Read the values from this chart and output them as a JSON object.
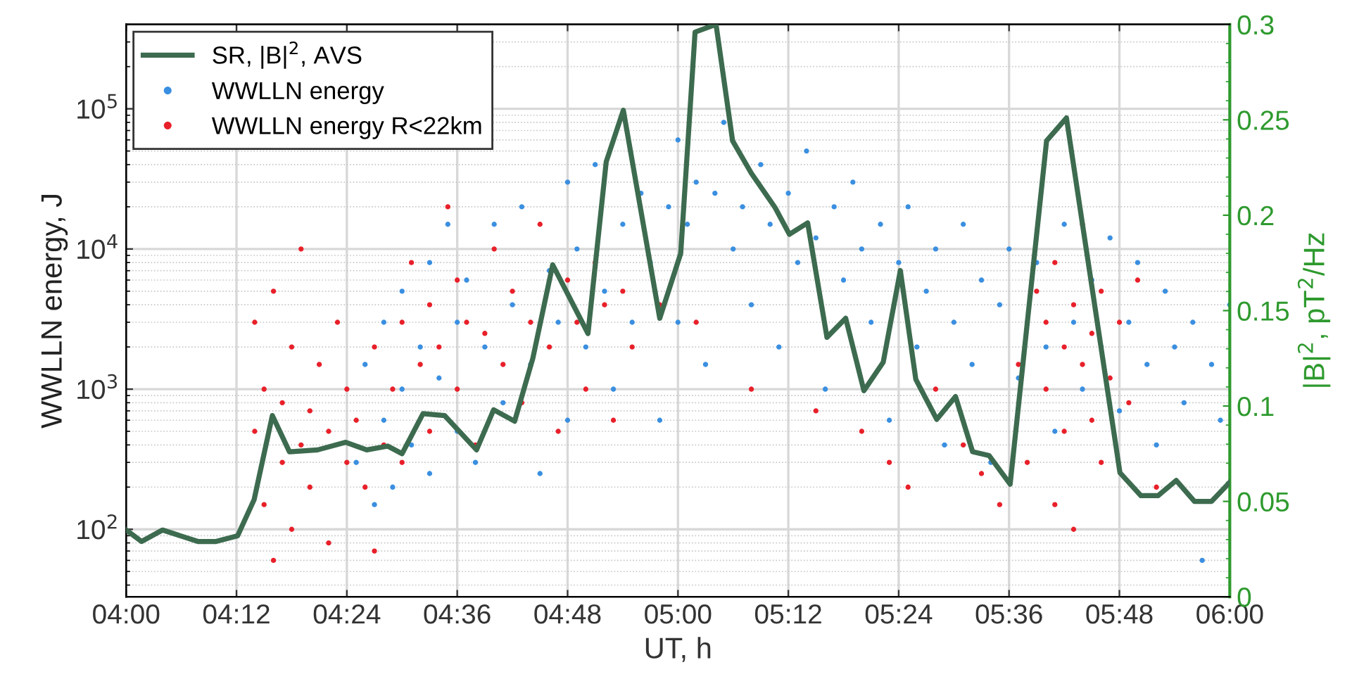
{
  "chart_data": {
    "type": "scatter",
    "xlabel": "UT, h",
    "ylabel": "WWLLN energy, J",
    "y2label": "|B|$^{2}$, pT$^{2}$/Hz",
    "xlim": [
      4.0,
      6.0
    ],
    "xticks": [
      {
        "value": 4.0,
        "label": "04:00"
      },
      {
        "value": 4.2,
        "label": "04:12"
      },
      {
        "value": 4.4,
        "label": "04:24"
      },
      {
        "value": 4.6,
        "label": "04:36"
      },
      {
        "value": 4.8,
        "label": "04:48"
      },
      {
        "value": 5.0,
        "label": "05:00"
      },
      {
        "value": 5.2,
        "label": "05:12"
      },
      {
        "value": 5.4,
        "label": "05:24"
      },
      {
        "value": 5.6,
        "label": "05:36"
      },
      {
        "value": 5.8,
        "label": "05:48"
      },
      {
        "value": 6.0,
        "label": "06:00"
      }
    ],
    "log": "y",
    "ylim": [
      33,
      400000
    ],
    "yticks": [
      {
        "value": 100,
        "label": "10$^{2}$"
      },
      {
        "value": 1000,
        "label": "10$^{3}$"
      },
      {
        "value": 10000,
        "label": "10$^{4}$"
      },
      {
        "value": 100000,
        "label": "10$^{5}$"
      }
    ],
    "y2lim": [
      0,
      0.3
    ],
    "y2ticks": [
      0,
      0.05,
      0.1,
      0.15,
      0.2,
      0.25,
      0.3
    ],
    "grid": true,
    "legend": "top left",
    "series": [
      {
        "name": "SR, |B|$^{2}$, AVS",
        "type": "line",
        "axis": "y2",
        "color": "#3d6b4f",
        "marker": "none",
        "line_style": "solid",
        "x": [
          4.0,
          4.028,
          4.066,
          4.13,
          4.163,
          4.202,
          4.232,
          4.265,
          4.296,
          4.347,
          4.398,
          4.436,
          4.474,
          4.5,
          4.538,
          4.577,
          4.635,
          4.666,
          4.704,
          4.737,
          4.773,
          4.837,
          4.87,
          4.901,
          4.967,
          5.005,
          5.031,
          5.069,
          5.099,
          5.133,
          5.176,
          5.202,
          5.235,
          5.27,
          5.304,
          5.337,
          5.372,
          5.403,
          5.431,
          5.469,
          5.503,
          5.534,
          5.564,
          5.602,
          5.668,
          5.704,
          5.801,
          5.839,
          5.87,
          5.903,
          5.936,
          5.967,
          6.0
        ],
        "values": [
          0.035,
          0.029,
          0.035,
          0.029,
          0.029,
          0.032,
          0.051,
          0.095,
          0.076,
          0.077,
          0.081,
          0.077,
          0.079,
          0.075,
          0.096,
          0.095,
          0.077,
          0.098,
          0.092,
          0.125,
          0.174,
          0.138,
          0.228,
          0.255,
          0.146,
          0.18,
          0.296,
          0.3,
          0.239,
          0.222,
          0.204,
          0.19,
          0.196,
          0.136,
          0.146,
          0.108,
          0.123,
          0.171,
          0.114,
          0.093,
          0.105,
          0.076,
          0.074,
          0.059,
          0.239,
          0.251,
          0.065,
          0.053,
          0.053,
          0.061,
          0.05,
          0.05,
          0.06
        ]
      },
      {
        "name": "WWLLN energy",
        "axis": "y",
        "color": "#3a8fe0",
        "marker": "circle",
        "x": [
          4.417,
          4.433,
          4.45,
          4.467,
          4.467,
          4.483,
          4.5,
          4.5,
          4.517,
          4.533,
          4.55,
          4.55,
          4.567,
          4.583,
          4.6,
          4.6,
          4.617,
          4.633,
          4.65,
          4.667,
          4.683,
          4.7,
          4.717,
          4.733,
          4.75,
          4.767,
          4.783,
          4.8,
          4.8,
          4.817,
          4.833,
          4.85,
          4.867,
          4.883,
          4.9,
          4.917,
          4.933,
          4.95,
          4.967,
          4.983,
          5.0,
          5.0,
          5.017,
          5.033,
          5.05,
          5.067,
          5.083,
          5.1,
          5.117,
          5.133,
          5.15,
          5.167,
          5.183,
          5.2,
          5.217,
          5.233,
          5.25,
          5.267,
          5.283,
          5.3,
          5.317,
          5.333,
          5.35,
          5.367,
          5.383,
          5.4,
          5.417,
          5.433,
          5.45,
          5.467,
          5.483,
          5.5,
          5.517,
          5.533,
          5.55,
          5.567,
          5.583,
          5.6,
          5.617,
          5.633,
          5.65,
          5.667,
          5.683,
          5.7,
          5.717,
          5.733,
          5.75,
          5.767,
          5.783,
          5.8,
          5.817,
          5.833,
          5.85,
          5.867,
          5.883,
          5.9,
          5.917,
          5.933,
          5.95,
          5.967,
          5.983,
          6.0
        ],
        "values": [
          300,
          1500,
          150,
          3000,
          600,
          200,
          1000,
          5000,
          400,
          2000,
          8000,
          250,
          1200,
          15000,
          3000,
          500,
          6000,
          300,
          2000,
          15000,
          800,
          4000,
          20000,
          1500,
          250,
          7000,
          3000,
          30000,
          600,
          10000,
          2000,
          40000,
          5000,
          1000,
          15000,
          3000,
          25000,
          8000,
          600,
          20000,
          60000,
          3000,
          15000,
          30000,
          1500,
          25000,
          80000,
          10000,
          20000,
          4000,
          40000,
          15000,
          2000,
          25000,
          8000,
          50000,
          12000,
          1000,
          20000,
          6000,
          30000,
          10000,
          3000,
          15000,
          600,
          8000,
          20000,
          2000,
          5000,
          10000,
          400,
          3000,
          15000,
          1500,
          6000,
          300,
          4000,
          10000,
          1200,
          3000,
          8000,
          2000,
          500,
          15000,
          3000,
          1000,
          6000,
          2000,
          12000,
          700,
          3000,
          8000,
          1500,
          400,
          5000,
          2000,
          800,
          3000,
          60,
          1500,
          600,
          4000
        ]
      },
      {
        "name": "WWLLN energy R<22km",
        "axis": "y",
        "color": "#e8202a",
        "marker": "circle",
        "x": [
          4.233,
          4.233,
          4.25,
          4.25,
          4.267,
          4.267,
          4.283,
          4.283,
          4.3,
          4.3,
          4.317,
          4.317,
          4.333,
          4.333,
          4.35,
          4.367,
          4.367,
          4.383,
          4.4,
          4.4,
          4.417,
          4.433,
          4.45,
          4.45,
          4.467,
          4.483,
          4.5,
          4.5,
          4.517,
          4.533,
          4.55,
          4.55,
          4.567,
          4.583,
          4.6,
          4.6,
          4.617,
          4.633,
          4.65,
          4.667,
          4.683,
          4.7,
          4.717,
          4.733,
          4.75,
          4.767,
          4.783,
          4.8,
          4.817,
          4.833,
          4.85,
          4.867,
          4.883,
          4.9,
          4.917,
          4.967,
          5.033,
          5.133,
          5.25,
          5.333,
          5.383,
          5.417,
          5.467,
          5.517,
          5.55,
          5.583,
          5.617,
          5.633,
          5.65,
          5.667,
          5.667,
          5.683,
          5.683,
          5.7,
          5.7,
          5.717,
          5.717,
          5.733,
          5.733,
          5.75,
          5.75,
          5.767,
          5.767,
          5.783,
          5.8,
          5.817,
          5.833,
          5.867
        ],
        "values": [
          500,
          3000,
          150,
          1000,
          60,
          5000,
          300,
          800,
          2000,
          100,
          400,
          10000,
          700,
          200,
          1500,
          500,
          80,
          3000,
          300,
          1000,
          600,
          200,
          2000,
          70,
          400,
          1000,
          3000,
          300,
          8000,
          1500,
          500,
          4000,
          2000,
          20000,
          1000,
          6000,
          3000,
          400,
          2500,
          10000,
          1500,
          5000,
          800,
          3000,
          15000,
          2000,
          500,
          6000,
          3000,
          1000,
          8000,
          4000,
          600,
          5000,
          2000,
          4000,
          3000,
          1000,
          700,
          500,
          300,
          200,
          1000,
          400,
          250,
          150,
          1500,
          300,
          5000,
          1000,
          3000,
          150,
          8000,
          2000,
          500,
          4000,
          100,
          1500,
          15000,
          2500,
          600,
          5000,
          300,
          1200,
          3000,
          800,
          6000,
          200
        ]
      }
    ]
  }
}
